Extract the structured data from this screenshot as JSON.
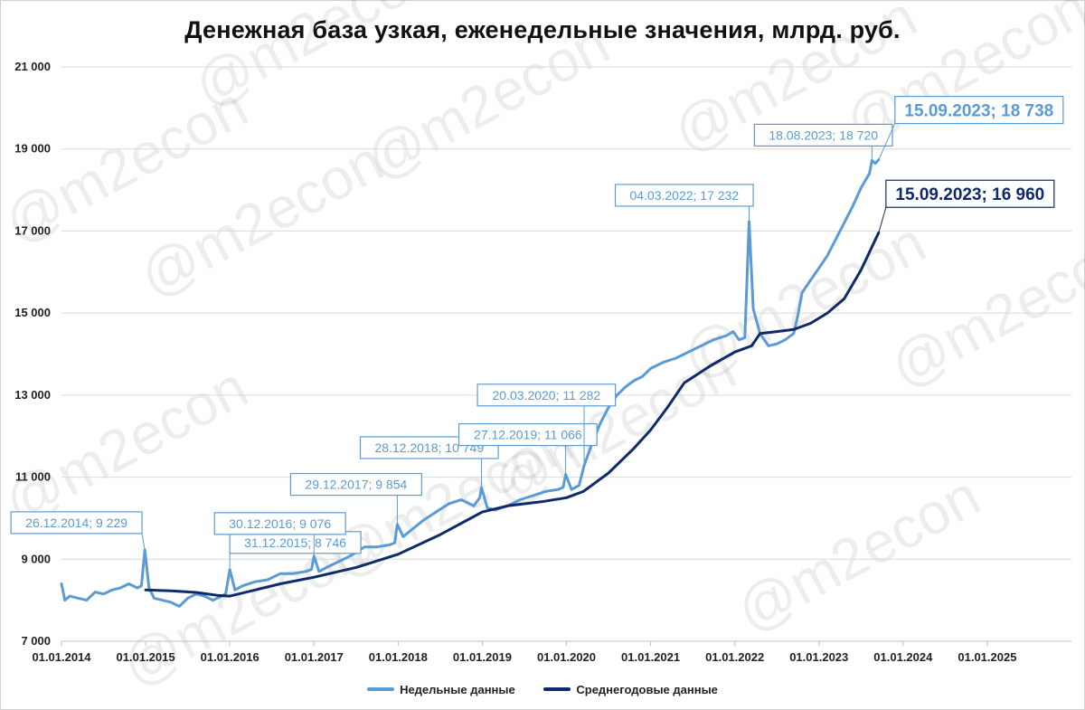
{
  "chart_data": {
    "type": "line",
    "title": "Денежная база узкая, еженедельные значения, млрд. руб.",
    "ylim": [
      7000,
      21000
    ],
    "yticks": [
      7000,
      9000,
      11000,
      13000,
      15000,
      17000,
      19000,
      21000
    ],
    "ytick_labels": [
      "7 000",
      "9 000",
      "11 000",
      "13 000",
      "15 000",
      "17 000",
      "19 000",
      "21 000"
    ],
    "xlim": [
      2014.0,
      2026.0
    ],
    "xticks": [
      2014,
      2015,
      2016,
      2017,
      2018,
      2019,
      2020,
      2021,
      2022,
      2023,
      2024,
      2025
    ],
    "xtick_labels": [
      "01.01.2014",
      "01.01.2015",
      "01.01.2016",
      "01.01.2017",
      "01.01.2018",
      "01.01.2019",
      "01.01.2020",
      "01.01.2021",
      "01.01.2022",
      "01.01.2023",
      "01.01.2024",
      "01.01.2025"
    ],
    "grid": "horizontal",
    "legend_position": "bottom",
    "series": [
      {
        "name": "Недельные данные",
        "color": "#5b9bd5",
        "points": [
          [
            2014.0,
            8400
          ],
          [
            2014.04,
            8000
          ],
          [
            2014.1,
            8100
          ],
          [
            2014.2,
            8050
          ],
          [
            2014.3,
            8000
          ],
          [
            2014.4,
            8200
          ],
          [
            2014.5,
            8150
          ],
          [
            2014.6,
            8250
          ],
          [
            2014.7,
            8300
          ],
          [
            2014.8,
            8400
          ],
          [
            2014.9,
            8300
          ],
          [
            2014.95,
            8350
          ],
          [
            2014.99,
            9229
          ],
          [
            2015.04,
            8300
          ],
          [
            2015.1,
            8050
          ],
          [
            2015.2,
            8000
          ],
          [
            2015.3,
            7950
          ],
          [
            2015.4,
            7850
          ],
          [
            2015.5,
            8050
          ],
          [
            2015.6,
            8150
          ],
          [
            2015.7,
            8100
          ],
          [
            2015.8,
            8000
          ],
          [
            2015.9,
            8100
          ],
          [
            2015.95,
            8150
          ],
          [
            2016.0,
            8746
          ],
          [
            2016.06,
            8250
          ],
          [
            2016.15,
            8350
          ],
          [
            2016.3,
            8450
          ],
          [
            2016.45,
            8500
          ],
          [
            2016.6,
            8650
          ],
          [
            2016.75,
            8650
          ],
          [
            2016.9,
            8700
          ],
          [
            2016.97,
            8750
          ],
          [
            2017.0,
            9076
          ],
          [
            2017.06,
            8700
          ],
          [
            2017.15,
            8800
          ],
          [
            2017.3,
            8950
          ],
          [
            2017.45,
            9100
          ],
          [
            2017.6,
            9300
          ],
          [
            2017.75,
            9300
          ],
          [
            2017.9,
            9350
          ],
          [
            2017.96,
            9400
          ],
          [
            2017.99,
            9854
          ],
          [
            2018.06,
            9550
          ],
          [
            2018.15,
            9700
          ],
          [
            2018.3,
            9950
          ],
          [
            2018.45,
            10150
          ],
          [
            2018.6,
            10350
          ],
          [
            2018.75,
            10450
          ],
          [
            2018.9,
            10300
          ],
          [
            2018.97,
            10500
          ],
          [
            2018.99,
            10749
          ],
          [
            2019.06,
            10250
          ],
          [
            2019.15,
            10200
          ],
          [
            2019.3,
            10300
          ],
          [
            2019.45,
            10450
          ],
          [
            2019.6,
            10550
          ],
          [
            2019.75,
            10650
          ],
          [
            2019.9,
            10700
          ],
          [
            2019.96,
            10750
          ],
          [
            2019.99,
            11066
          ],
          [
            2020.06,
            10700
          ],
          [
            2020.15,
            10800
          ],
          [
            2020.21,
            11282
          ],
          [
            2020.3,
            11800
          ],
          [
            2020.4,
            12300
          ],
          [
            2020.5,
            12700
          ],
          [
            2020.6,
            13000
          ],
          [
            2020.7,
            13200
          ],
          [
            2020.8,
            13350
          ],
          [
            2020.9,
            13450
          ],
          [
            2021.0,
            13650
          ],
          [
            2021.15,
            13800
          ],
          [
            2021.3,
            13900
          ],
          [
            2021.45,
            14050
          ],
          [
            2021.6,
            14200
          ],
          [
            2021.75,
            14350
          ],
          [
            2021.9,
            14450
          ],
          [
            2021.98,
            14550
          ],
          [
            2022.05,
            14350
          ],
          [
            2022.12,
            14400
          ],
          [
            2022.17,
            17232
          ],
          [
            2022.22,
            15100
          ],
          [
            2022.3,
            14500
          ],
          [
            2022.4,
            14200
          ],
          [
            2022.5,
            14250
          ],
          [
            2022.6,
            14350
          ],
          [
            2022.7,
            14500
          ],
          [
            2022.75,
            14950
          ],
          [
            2022.8,
            15500
          ],
          [
            2022.9,
            15800
          ],
          [
            2023.0,
            16100
          ],
          [
            2023.1,
            16400
          ],
          [
            2023.2,
            16800
          ],
          [
            2023.3,
            17200
          ],
          [
            2023.4,
            17600
          ],
          [
            2023.5,
            18050
          ],
          [
            2023.6,
            18400
          ],
          [
            2023.63,
            18720
          ],
          [
            2023.67,
            18650
          ],
          [
            2023.71,
            18738
          ]
        ]
      },
      {
        "name": "Среднегодовые данные",
        "color": "#0f2a6b",
        "points": [
          [
            2015.0,
            8250
          ],
          [
            2015.3,
            8230
          ],
          [
            2015.6,
            8190
          ],
          [
            2015.85,
            8120
          ],
          [
            2016.0,
            8100
          ],
          [
            2016.3,
            8250
          ],
          [
            2016.6,
            8400
          ],
          [
            2017.0,
            8560
          ],
          [
            2017.5,
            8800
          ],
          [
            2018.0,
            9120
          ],
          [
            2018.5,
            9600
          ],
          [
            2019.0,
            10150
          ],
          [
            2019.3,
            10300
          ],
          [
            2019.7,
            10400
          ],
          [
            2020.0,
            10500
          ],
          [
            2020.2,
            10650
          ],
          [
            2020.5,
            11100
          ],
          [
            2020.8,
            11700
          ],
          [
            2021.0,
            12150
          ],
          [
            2021.2,
            12700
          ],
          [
            2021.4,
            13300
          ],
          [
            2021.7,
            13700
          ],
          [
            2022.0,
            14050
          ],
          [
            2022.2,
            14200
          ],
          [
            2022.3,
            14500
          ],
          [
            2022.5,
            14550
          ],
          [
            2022.7,
            14600
          ],
          [
            2022.9,
            14750
          ],
          [
            2023.1,
            15000
          ],
          [
            2023.3,
            15350
          ],
          [
            2023.5,
            16050
          ],
          [
            2023.71,
            16960
          ]
        ]
      }
    ],
    "annotations": [
      {
        "text": "26.12.2014; 9 229",
        "series": 0,
        "x": 2014.99,
        "y": 9229,
        "big": false
      },
      {
        "text": "31.12.2015; 8 746",
        "series": 0,
        "x": 2016.0,
        "y": 8746,
        "big": false
      },
      {
        "text": "30.12.2016; 9 076",
        "series": 0,
        "x": 2017.0,
        "y": 9076,
        "big": false
      },
      {
        "text": "29.12.2017; 9 854",
        "series": 0,
        "x": 2017.99,
        "y": 9854,
        "big": false
      },
      {
        "text": "28.12.2018; 10 749",
        "series": 0,
        "x": 2018.99,
        "y": 10749,
        "big": false
      },
      {
        "text": "27.12.2019; 11 066",
        "series": 0,
        "x": 2019.99,
        "y": 11066,
        "big": false
      },
      {
        "text": "20.03.2020; 11 282",
        "series": 0,
        "x": 2020.21,
        "y": 11282,
        "big": false
      },
      {
        "text": "04.03.2022; 17 232",
        "series": 0,
        "x": 2022.17,
        "y": 17232,
        "big": false
      },
      {
        "text": "18.08.2023; 18 720",
        "series": 0,
        "x": 2023.63,
        "y": 18720,
        "big": false
      },
      {
        "text": "15.09.2023; 18 738",
        "series": 0,
        "x": 2023.71,
        "y": 18738,
        "big": true
      },
      {
        "text": "15.09.2023; 16 960",
        "series": 1,
        "x": 2023.71,
        "y": 16960,
        "big": true
      }
    ]
  },
  "watermark": "@m2econ"
}
